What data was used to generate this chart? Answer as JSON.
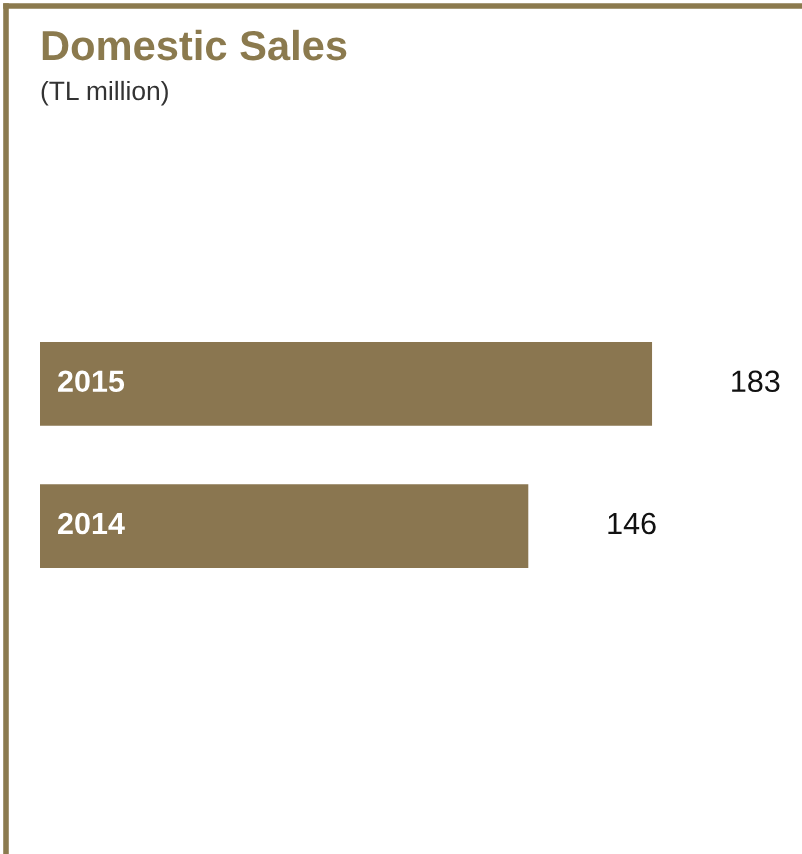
{
  "chart_data": {
    "type": "bar",
    "orientation": "horizontal",
    "title": "Domestic Sales",
    "subtitle": "(TL million)",
    "categories": [
      "2015",
      "2014"
    ],
    "values": [
      183,
      146
    ],
    "color": "#8a7650",
    "data_labels": true
  }
}
